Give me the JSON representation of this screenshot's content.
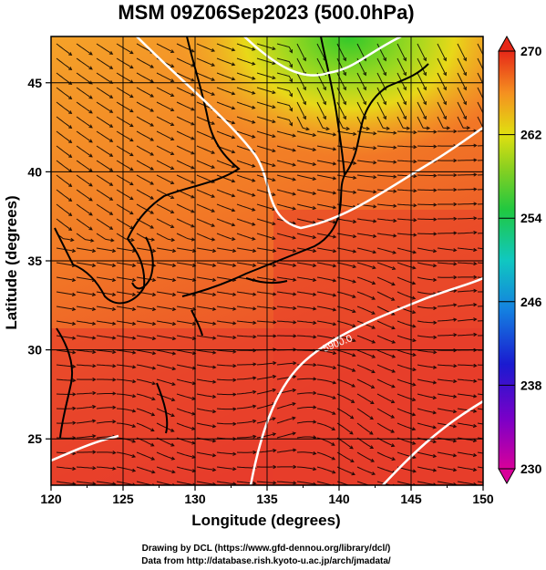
{
  "title": "MSM 09Z06Sep2023 (500.0hPa)",
  "map": {
    "xlabel": "Longitude (degrees)",
    "ylabel": "Latitude  (degrees)",
    "lon_range": [
      120,
      150
    ],
    "lat_range": [
      22.4,
      47.6
    ],
    "x_ticks": [
      "120",
      "125",
      "130",
      "135",
      "140",
      "145",
      "150"
    ],
    "y_ticks": [
      "25",
      "30",
      "35",
      "40",
      "45"
    ],
    "grid": true,
    "field": "temperature (K), shaded",
    "vectors": "wind streamlines",
    "contour_label": "5900.0",
    "colors": {
      "warm": "#e8402a",
      "mid": "#f5902a",
      "cool": "#3cc82a",
      "contour": "#ffffff"
    }
  },
  "colorbar": {
    "ticks": [
      "270",
      "262",
      "254",
      "246",
      "238",
      "230"
    ],
    "min": 230,
    "max": 270
  },
  "credits": {
    "line1": "Drawing by DCL (https://www.gfd-dennou.org/library/dcl/)",
    "line2": "Data from http://database.rish.kyoto-u.ac.jp/arch/jmadata/"
  }
}
